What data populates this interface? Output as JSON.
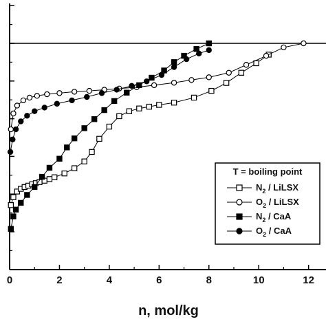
{
  "chart_data": {
    "type": "scatter",
    "title": "",
    "xlabel": "n, mol/kg",
    "ylabel": "",
    "xlim": [
      0,
      12.7
    ],
    "x_ticks": [
      "0",
      "2",
      "4",
      "6",
      "8",
      "10",
      "12"
    ],
    "y_ticks_shown": false,
    "reference_line_visible": true,
    "legend": {
      "title": "T = boiling point",
      "placement": "lower-right"
    },
    "series": [
      {
        "name": "N2 / LiLSX",
        "label_main": "N",
        "label_sub": "2",
        "label_tail": " / LiLSX",
        "marker": "open-square",
        "points": [
          [
            0.05,
            0.285
          ],
          [
            0.15,
            0.32
          ],
          [
            0.3,
            0.345
          ],
          [
            0.45,
            0.357
          ],
          [
            0.6,
            0.365
          ],
          [
            0.75,
            0.371
          ],
          [
            0.9,
            0.377
          ],
          [
            1.05,
            0.382
          ],
          [
            1.2,
            0.387
          ],
          [
            1.4,
            0.393
          ],
          [
            1.6,
            0.4
          ],
          [
            1.8,
            0.408
          ],
          [
            2.2,
            0.425
          ],
          [
            2.6,
            0.448
          ],
          [
            3.0,
            0.478
          ],
          [
            3.3,
            0.52
          ],
          [
            3.6,
            0.578
          ],
          [
            4.0,
            0.632
          ],
          [
            4.4,
            0.678
          ],
          [
            4.8,
            0.7
          ],
          [
            5.2,
            0.712
          ],
          [
            5.6,
            0.72
          ],
          [
            6.0,
            0.728
          ],
          [
            6.6,
            0.738
          ],
          [
            7.4,
            0.76
          ],
          [
            8.1,
            0.79
          ],
          [
            8.7,
            0.825
          ],
          [
            9.3,
            0.87
          ],
          [
            9.9,
            0.912
          ],
          [
            10.4,
            0.95
          ]
        ]
      },
      {
        "name": "O2 / LiLSX",
        "label_main": "O",
        "label_sub": "2",
        "label_tail": " / LiLSX",
        "marker": "open-circle",
        "points": [
          [
            0.05,
            0.62
          ],
          [
            0.15,
            0.69
          ],
          [
            0.3,
            0.725
          ],
          [
            0.55,
            0.748
          ],
          [
            0.8,
            0.76
          ],
          [
            1.1,
            0.768
          ],
          [
            1.5,
            0.775
          ],
          [
            2.0,
            0.78
          ],
          [
            2.6,
            0.786
          ],
          [
            3.2,
            0.79
          ],
          [
            3.8,
            0.795
          ],
          [
            4.4,
            0.8
          ],
          [
            5.1,
            0.806
          ],
          [
            5.8,
            0.815
          ],
          [
            6.6,
            0.826
          ],
          [
            7.3,
            0.838
          ],
          [
            8.0,
            0.85
          ],
          [
            8.8,
            0.87
          ],
          [
            9.5,
            0.905
          ],
          [
            10.3,
            0.945
          ],
          [
            11.0,
            0.982
          ],
          [
            11.8,
            1.0
          ]
        ]
      },
      {
        "name": "N2 / CaA",
        "label_main": "N",
        "label_sub": "2",
        "label_tail": " / CaA",
        "marker": "filled-square",
        "points": [
          [
            0.05,
            0.18
          ],
          [
            0.15,
            0.235
          ],
          [
            0.25,
            0.265
          ],
          [
            0.45,
            0.295
          ],
          [
            0.7,
            0.33
          ],
          [
            1.0,
            0.365
          ],
          [
            1.3,
            0.41
          ],
          [
            1.6,
            0.45
          ],
          [
            2.0,
            0.49
          ],
          [
            2.3,
            0.54
          ],
          [
            2.6,
            0.58
          ],
          [
            3.0,
            0.625
          ],
          [
            3.4,
            0.665
          ],
          [
            3.8,
            0.705
          ],
          [
            4.2,
            0.745
          ],
          [
            4.7,
            0.782
          ],
          [
            5.2,
            0.815
          ],
          [
            5.7,
            0.848
          ],
          [
            6.2,
            0.88
          ],
          [
            6.6,
            0.917
          ],
          [
            7.0,
            0.945
          ],
          [
            7.5,
            0.975
          ],
          [
            8.0,
            1.0
          ]
        ]
      },
      {
        "name": "O2 / CaA",
        "label_main": "O",
        "label_sub": "2",
        "label_tail": " / CaA",
        "marker": "filled-circle",
        "points": [
          [
            0.03,
            0.52
          ],
          [
            0.12,
            0.575
          ],
          [
            0.25,
            0.62
          ],
          [
            0.45,
            0.655
          ],
          [
            0.7,
            0.68
          ],
          [
            1.0,
            0.7
          ],
          [
            1.4,
            0.716
          ],
          [
            1.9,
            0.733
          ],
          [
            2.5,
            0.748
          ],
          [
            3.1,
            0.763
          ],
          [
            3.7,
            0.78
          ],
          [
            4.3,
            0.795
          ],
          [
            4.9,
            0.812
          ],
          [
            5.5,
            0.832
          ],
          [
            6.1,
            0.86
          ],
          [
            6.6,
            0.895
          ],
          [
            7.1,
            0.93
          ],
          [
            7.6,
            0.955
          ],
          [
            8.0,
            0.97
          ]
        ]
      }
    ]
  }
}
